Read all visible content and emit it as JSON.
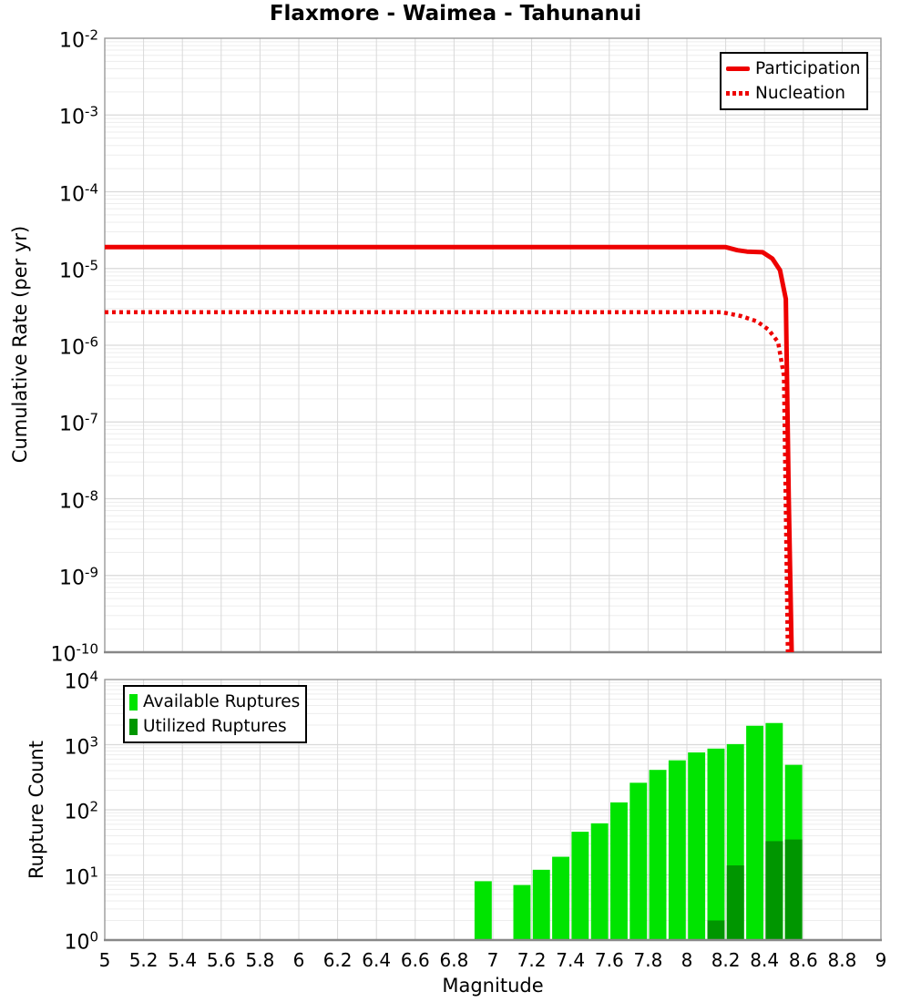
{
  "title": "Flaxmore - Waimea - Tahunanui",
  "top_plot": {
    "ylabel": "Cumulative Rate (per yr)",
    "y_tick_exponents": [
      -2,
      -3,
      -4,
      -5,
      -6,
      -7,
      -8,
      -9,
      -10
    ],
    "legend": [
      {
        "label": "Participation",
        "style": "solid"
      },
      {
        "label": "Nucleation",
        "style": "dotted"
      }
    ]
  },
  "bottom_plot": {
    "ylabel": "Rupture Count",
    "y_tick_exponents": [
      4,
      3,
      2,
      1,
      0
    ],
    "legend": [
      {
        "label": "Available Ruptures",
        "color": "#00e400"
      },
      {
        "label": "Utilized Ruptures",
        "color": "#009600"
      }
    ]
  },
  "x_axis": {
    "label": "Magnitude",
    "tick_labels": [
      "5",
      "5.2",
      "5.4",
      "5.6",
      "5.8",
      "6",
      "6.2",
      "6.4",
      "6.6",
      "6.8",
      "7",
      "7.2",
      "7.4",
      "7.6",
      "7.8",
      "8",
      "8.2",
      "8.4",
      "8.6",
      "8.8",
      "9"
    ],
    "tick_start": 5,
    "tick_step": 0.2
  },
  "colors": {
    "line_red": "#ee0000",
    "available_green": "#00e400",
    "utilized_green": "#009600",
    "grid_major": "#d9d9d9",
    "grid_minor": "#ededed",
    "border": "#999999",
    "axis_line": "#888888"
  },
  "chart_data": [
    {
      "type": "line",
      "title": "Flaxmore - Waimea - Tahunanui",
      "xlabel": "Magnitude",
      "ylabel": "Cumulative Rate (per yr)",
      "xlim": [
        5,
        9
      ],
      "y_scale": "log",
      "ylim": [
        1e-10,
        0.01
      ],
      "grid": true,
      "legend_position": "top-right",
      "series": [
        {
          "name": "Participation",
          "style": "solid",
          "color": "#ee0000",
          "points": [
            [
              5.0,
              1.9e-05
            ],
            [
              8.2,
              1.9e-05
            ],
            [
              8.26,
              1.73e-05
            ],
            [
              8.31,
              1.66e-05
            ],
            [
              8.39,
              1.63e-05
            ],
            [
              8.44,
              1.35e-05
            ],
            [
              8.48,
              9.5e-06
            ],
            [
              8.51,
              4e-06
            ],
            [
              8.525,
              1e-08
            ],
            [
              8.54,
              1e-10
            ]
          ]
        },
        {
          "name": "Nucleation",
          "style": "dotted",
          "color": "#ee0000",
          "points": [
            [
              5.0,
              2.7e-06
            ],
            [
              8.18,
              2.7e-06
            ],
            [
              8.28,
              2.4e-06
            ],
            [
              8.36,
              2.05e-06
            ],
            [
              8.42,
              1.6e-06
            ],
            [
              8.47,
              1.1e-06
            ],
            [
              8.5,
              4e-07
            ],
            [
              8.52,
              1e-10
            ]
          ]
        }
      ]
    },
    {
      "type": "bar",
      "xlabel": "Magnitude",
      "ylabel": "Rupture Count",
      "xlim": [
        5,
        9
      ],
      "y_scale": "log",
      "ylim": [
        1,
        10000
      ],
      "bin_width": 0.1,
      "grid": true,
      "legend_position": "top-left",
      "series": [
        {
          "name": "Available Ruptures",
          "color": "#00e400",
          "bins": [
            {
              "mag": 6.95,
              "count": 8
            },
            {
              "mag": 7.15,
              "count": 7
            },
            {
              "mag": 7.25,
              "count": 12
            },
            {
              "mag": 7.35,
              "count": 19
            },
            {
              "mag": 7.45,
              "count": 46
            },
            {
              "mag": 7.55,
              "count": 62
            },
            {
              "mag": 7.65,
              "count": 130
            },
            {
              "mag": 7.75,
              "count": 260
            },
            {
              "mag": 7.85,
              "count": 410
            },
            {
              "mag": 7.95,
              "count": 575
            },
            {
              "mag": 8.05,
              "count": 760
            },
            {
              "mag": 8.15,
              "count": 870
            },
            {
              "mag": 8.25,
              "count": 1020
            },
            {
              "mag": 8.35,
              "count": 1950
            },
            {
              "mag": 8.45,
              "count": 2150
            },
            {
              "mag": 8.55,
              "count": 490
            }
          ]
        },
        {
          "name": "Utilized Ruptures",
          "color": "#009600",
          "bins": [
            {
              "mag": 8.15,
              "count": 2
            },
            {
              "mag": 8.25,
              "count": 14
            },
            {
              "mag": 8.45,
              "count": 33
            },
            {
              "mag": 8.55,
              "count": 35
            }
          ]
        }
      ]
    }
  ]
}
